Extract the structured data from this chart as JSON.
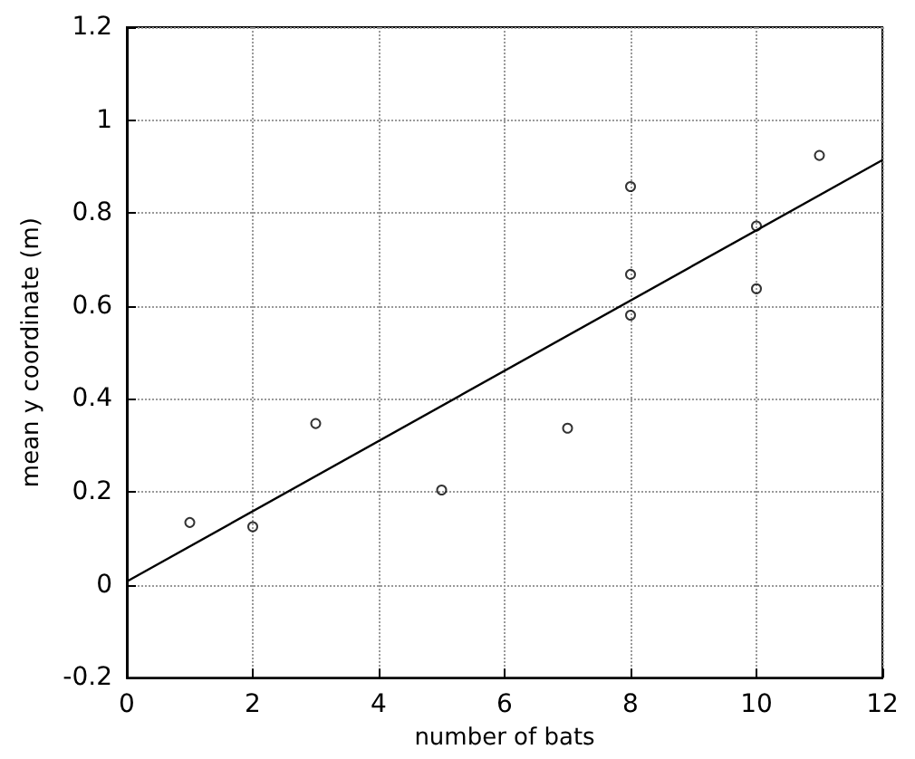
{
  "chart_data": {
    "type": "scatter",
    "xlabel": "number of bats",
    "ylabel": "mean y coordinate (m)",
    "xlim": [
      0,
      12
    ],
    "xticks": [
      0,
      2,
      4,
      6,
      8,
      10,
      12
    ],
    "ylim": [
      -0.2,
      1.2
    ],
    "yticks": [
      -0.2,
      0,
      0.2,
      0.4,
      0.6,
      0.8,
      1,
      1.2
    ],
    "grid": true,
    "series": [
      {
        "color": "#000000",
        "marker": "circle",
        "x": [
          1,
          2,
          3,
          5,
          7,
          8,
          8,
          8,
          10,
          10,
          11
        ],
        "values": [
          0.134,
          0.125,
          0.347,
          0.204,
          0.337,
          0.857,
          0.668,
          0.58,
          0.772,
          0.637,
          0.924
        ]
      },
      {
        "type": "line",
        "color": "#000000",
        "marker": "none",
        "line_style": "solid",
        "x": [
          0,
          12
        ],
        "values": [
          0.007,
          0.914
        ]
      }
    ]
  }
}
